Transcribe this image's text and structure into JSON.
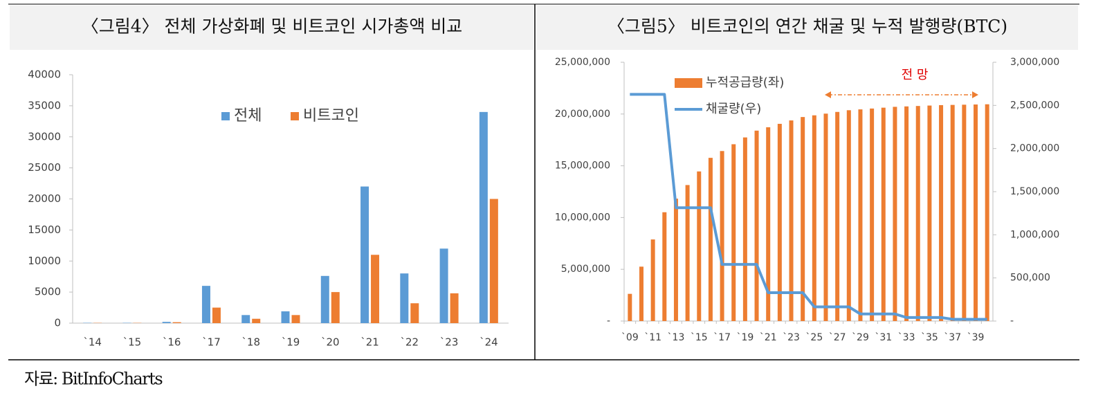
{
  "chart_data": [
    {
      "type": "bar",
      "title": "〈그림4〉 전체 가상화폐 및 비트코인 시가총액 비교",
      "categories": [
        "`14",
        "`15",
        "`16",
        "`17",
        "`18",
        "`19",
        "`20",
        "`21",
        "`22",
        "`23",
        "`24"
      ],
      "series": [
        {
          "name": "전체",
          "type": "bar",
          "color": "#5b9bd5",
          "values": [
            50,
            50,
            200,
            6000,
            1300,
            1900,
            7600,
            22000,
            8000,
            12000,
            34000
          ]
        },
        {
          "name": "비트코인",
          "type": "bar",
          "color": "#ed7d31",
          "values": [
            40,
            40,
            150,
            2500,
            700,
            1300,
            5000,
            11000,
            3200,
            4800,
            20000
          ]
        }
      ],
      "ylim": [
        0,
        40000
      ],
      "yticks": [
        0,
        5000,
        10000,
        15000,
        20000,
        25000,
        30000,
        35000,
        40000
      ],
      "grid": false,
      "legend": "top"
    },
    {
      "type": "combo",
      "title": "〈그림5〉 비트코인의 연간 채굴 및 누적 발행량(BTC)",
      "categories": [
        "`09",
        null,
        "`11",
        null,
        "`13",
        null,
        "`15",
        null,
        "`17",
        null,
        "`19",
        null,
        "`21",
        null,
        "`23",
        null,
        "`25",
        null,
        "`27",
        null,
        "`29",
        null,
        "`31",
        null,
        "`33",
        null,
        "`35",
        null,
        "`37",
        null,
        "`39",
        null
      ],
      "series": [
        {
          "name": "누적공급량(좌)",
          "type": "bar",
          "color": "#ed7d31",
          "values": [
            2628000,
            5256000,
            7884000,
            10512000,
            11826000,
            13140000,
            14454000,
            15768000,
            16425000,
            17082000,
            17739000,
            18396000,
            18724500,
            19053000,
            19381500,
            19710000,
            19874250,
            20038500,
            20202750,
            20367000,
            20449125,
            20531250,
            20613375,
            20695500,
            20736563,
            20777625,
            20818688,
            20859750,
            20880281,
            20900813,
            20921344,
            20941875
          ]
        },
        {
          "name": "채굴량(우)",
          "type": "line",
          "axis": "y2",
          "color": "#5b9bd5",
          "values": [
            2628000,
            2628000,
            2628000,
            2628000,
            1314000,
            1314000,
            1314000,
            1314000,
            657000,
            657000,
            657000,
            657000,
            328500,
            328500,
            328500,
            328500,
            164250,
            164250,
            164250,
            164250,
            82125,
            82125,
            82125,
            82125,
            41063,
            41063,
            41063,
            41063,
            20531,
            20531,
            20531,
            20531
          ]
        }
      ],
      "ylim": [
        0,
        25000000
      ],
      "yticks": [
        {
          "value": 0,
          "label": "-"
        },
        {
          "value": 5000000,
          "label": "5,000,000"
        },
        {
          "value": 10000000,
          "label": "10,000,000"
        },
        {
          "value": 15000000,
          "label": "15,000,000"
        },
        {
          "value": 20000000,
          "label": "20,000,000"
        },
        {
          "value": 25000000,
          "label": "25,000,000"
        }
      ],
      "y2lim": [
        0,
        3000000
      ],
      "y2ticks": [
        {
          "value": 0,
          "label": "-"
        },
        {
          "value": 500000,
          "label": "500,000"
        },
        {
          "value": 1000000,
          "label": "1,000,000"
        },
        {
          "value": 1500000,
          "label": "1,500,000"
        },
        {
          "value": 2000000,
          "label": "2,000,000"
        },
        {
          "value": 2500000,
          "label": "2,500,000"
        },
        {
          "value": 3000000,
          "label": "3,000,000"
        }
      ],
      "annotation": "전 망",
      "grid": false,
      "legend": "upper left"
    }
  ],
  "source": "자료: BitInfoCharts"
}
